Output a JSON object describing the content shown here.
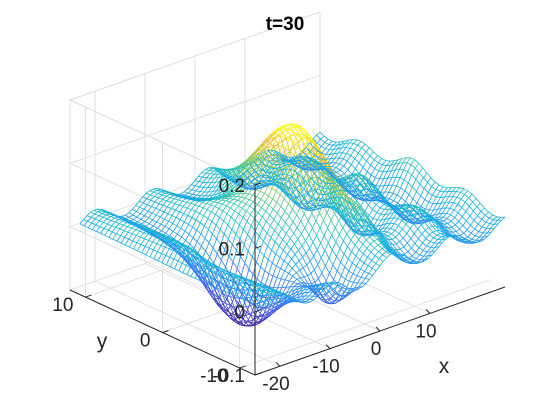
{
  "chart_data": {
    "type": "surface-mesh",
    "title": "t=30",
    "xlabel": "x",
    "ylabel": "y",
    "zlabel": "",
    "xlim": [
      -25,
      25
    ],
    "ylim": [
      -12,
      12
    ],
    "zlim": [
      -0.1,
      0.2
    ],
    "xticks": [
      -20,
      -10,
      0,
      10
    ],
    "xtick_labels": [
      "-20",
      "-10",
      "0",
      "10"
    ],
    "yticks": [
      -10,
      0,
      10
    ],
    "ytick_labels": [
      "-10",
      "0",
      "10"
    ],
    "zticks": [
      -0.1,
      0,
      0.1,
      0.2
    ],
    "ztick_labels": [
      "-0.1",
      "0",
      "0.1",
      "0.2"
    ],
    "grid": true,
    "colormap": "parula",
    "surface": {
      "peak": {
        "x": 0,
        "y": 0,
        "z": 0.14
      },
      "wave_amplitude": 0.03,
      "trough_depth": -0.1,
      "note_on_shape": "central Gaussian peak with surrounding ripples and oscillating wake"
    }
  }
}
